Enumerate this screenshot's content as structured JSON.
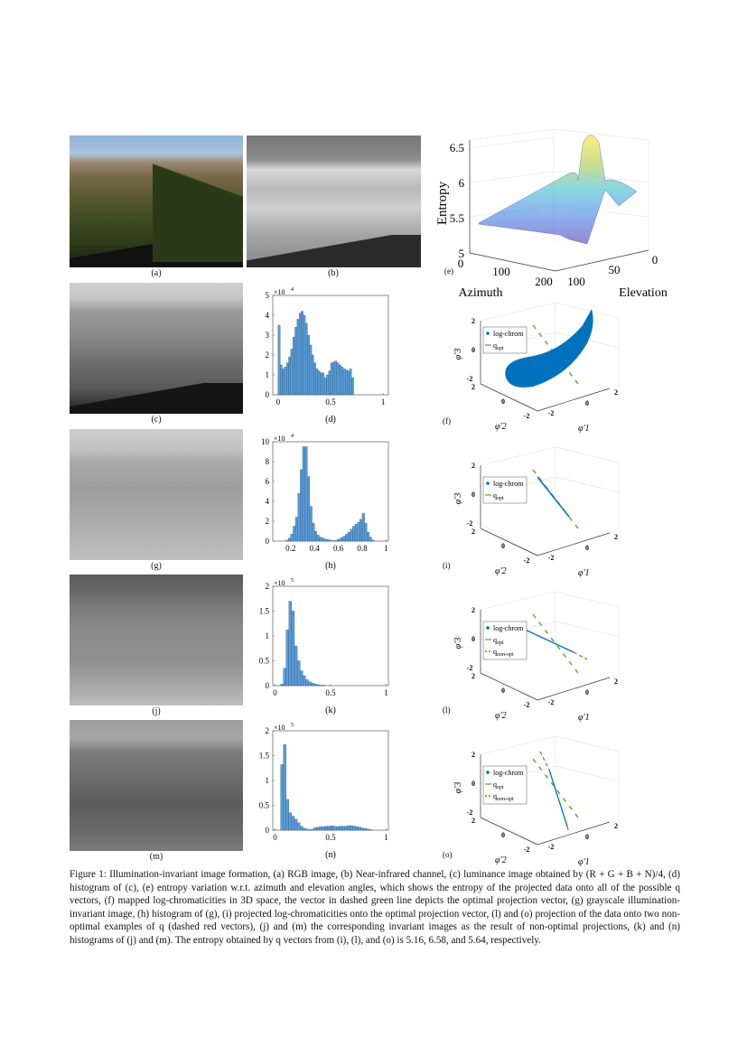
{
  "figure": {
    "panel_labels": {
      "a": "(a)",
      "b": "(b)",
      "c": "(c)",
      "d": "(d)",
      "e": "(e)",
      "f": "(f)",
      "g": "(g)",
      "h": "(h)",
      "i": "(i)",
      "j": "(j)",
      "k": "(k)",
      "l": "(l)",
      "m": "(m)",
      "n": "(n)",
      "o": "(o)"
    },
    "caption": "Figure 1: Illumination-invariant image formation, (a) RGB image, (b) Near-infrared channel, (c) luminance image obtained by (R + G + B + N)/4, (d) histogram of (c), (e) entropy variation w.r.t. azimuth and elevation angles, which shows the entropy of the projected data onto all of the possible q vectors, (f) mapped log-chromaticities in 3D space, the vector in dashed green line depicts the optimal projection vector, (g) grayscale illumination-invariant image, (h) histogram of (g), (i) projected log-chromaticities onto the optimal projection vector, (l) and (o) projection of the data onto two non-optimal examples of q (dashed red vectors), (j) and (m) the corresponding invariant images as the result of non-optimal projections, (k) and (n) histograms of (j) and (m). The entropy obtained by q vectors from (i), (l), and (o) is 5.16, 6.58, and 5.64, respectively."
  },
  "colors": {
    "bar": "#5b9bd5",
    "bar_edge": "#1f4e79",
    "log_chrom": "#0072bd",
    "q_opt": "#77ac30",
    "q_non_opt": "#d95319"
  },
  "chart_data": [
    {
      "id": "d",
      "type": "bar",
      "xlim": [
        -0.05,
        1.05
      ],
      "ylim": [
        0,
        5
      ],
      "multiplier": "×10",
      "exponent": "4",
      "xticks": [
        "0",
        "0.5",
        "1"
      ],
      "yticks": [
        "0",
        "1",
        "2",
        "3",
        "4",
        "5"
      ],
      "bin_width": 0.02,
      "x": [
        0,
        0.02,
        0.04,
        0.06,
        0.08,
        0.1,
        0.12,
        0.14,
        0.16,
        0.18,
        0.2,
        0.22,
        0.24,
        0.26,
        0.28,
        0.3,
        0.32,
        0.34,
        0.36,
        0.38,
        0.4,
        0.42,
        0.44,
        0.46,
        0.48,
        0.5,
        0.52,
        0.54,
        0.56,
        0.58,
        0.6,
        0.62,
        0.64,
        0.66,
        0.68,
        0.7
      ],
      "values": [
        3.5,
        1.5,
        1.3,
        1.4,
        1.6,
        1.9,
        2.3,
        2.9,
        3.4,
        3.8,
        4.1,
        4.2,
        4.0,
        3.6,
        3.0,
        2.5,
        2.0,
        1.6,
        1.3,
        1.2,
        1.1,
        1.1,
        0.85,
        1.0,
        1.2,
        1.6,
        1.65,
        1.7,
        1.6,
        1.5,
        1.4,
        1.3,
        1.25,
        1.2,
        1.3,
        0.85
      ]
    },
    {
      "id": "h",
      "type": "bar",
      "xlim": [
        0.05,
        1.02
      ],
      "ylim": [
        0,
        10
      ],
      "multiplier": "×10",
      "exponent": "4",
      "xticks": [
        "0.2",
        "0.4",
        "0.6",
        "0.8",
        "1"
      ],
      "yticks": [
        "0",
        "2",
        "4",
        "6",
        "8",
        "10"
      ],
      "bin_width": 0.02,
      "x": [
        0.16,
        0.18,
        0.2,
        0.22,
        0.24,
        0.26,
        0.28,
        0.3,
        0.32,
        0.34,
        0.36,
        0.38,
        0.4,
        0.42,
        0.44,
        0.46,
        0.48,
        0.5,
        0.52,
        0.54,
        0.56,
        0.58,
        0.6,
        0.62,
        0.64,
        0.66,
        0.68,
        0.7,
        0.72,
        0.74,
        0.76,
        0.78,
        0.8,
        0.82,
        0.84,
        0.86,
        0.88
      ],
      "values": [
        0.1,
        0.3,
        0.7,
        1.5,
        2.4,
        4.8,
        7.2,
        9.5,
        9.5,
        6.5,
        3.5,
        1.8,
        1.0,
        0.6,
        0.4,
        0.3,
        0.2,
        0.15,
        0.1,
        0.05,
        0.05,
        0.1,
        0.2,
        0.35,
        0.5,
        0.7,
        0.9,
        1.2,
        1.5,
        1.7,
        1.9,
        2.2,
        2.8,
        1.8,
        0.9,
        0.4,
        0.1
      ]
    },
    {
      "id": "k",
      "type": "bar",
      "xlim": [
        -0.02,
        1.02
      ],
      "ylim": [
        0,
        2
      ],
      "multiplier": "×10",
      "exponent": "5",
      "xticks": [
        "0",
        "0.5",
        "1"
      ],
      "yticks": [
        "0",
        "0.5",
        "1",
        "1.5",
        "2"
      ],
      "bin_width": 0.025,
      "x": [
        0.05,
        0.075,
        0.1,
        0.125,
        0.15,
        0.175,
        0.2,
        0.225,
        0.25,
        0.275,
        0.3,
        0.325,
        0.35,
        0.375,
        0.4,
        0.425
      ],
      "values": [
        0.03,
        0.35,
        1.12,
        1.7,
        1.5,
        0.8,
        0.5,
        0.3,
        0.2,
        0.12,
        0.08,
        0.05,
        0.03,
        0.02,
        0.01,
        0.01
      ]
    },
    {
      "id": "n",
      "type": "bar",
      "xlim": [
        -0.02,
        1.02
      ],
      "ylim": [
        0,
        2
      ],
      "multiplier": "×10",
      "exponent": "5",
      "xticks": [
        "0",
        "0.5",
        "1"
      ],
      "yticks": [
        "0",
        "0.5",
        "1",
        "1.5",
        "2"
      ],
      "bin_width": 0.025,
      "x": [
        0.05,
        0.075,
        0.1,
        0.125,
        0.15,
        0.175,
        0.2,
        0.225,
        0.25,
        0.275,
        0.3,
        0.325,
        0.35,
        0.375,
        0.4,
        0.425,
        0.45,
        0.475,
        0.5,
        0.525,
        0.55,
        0.575,
        0.6,
        0.625,
        0.65,
        0.675,
        0.7,
        0.725,
        0.75,
        0.775,
        0.8,
        0.825,
        0.85
      ],
      "values": [
        1.32,
        1.72,
        0.62,
        0.35,
        0.28,
        0.22,
        0.15,
        0.08,
        0.04,
        0.02,
        0.01,
        0.02,
        0.05,
        0.06,
        0.07,
        0.07,
        0.08,
        0.08,
        0.09,
        0.08,
        0.07,
        0.08,
        0.08,
        0.08,
        0.09,
        0.09,
        0.08,
        0.07,
        0.06,
        0.04,
        0.03,
        0.02,
        0.01
      ]
    },
    {
      "id": "e",
      "type": "surface",
      "zlabel": "Entropy",
      "xlabel": "Azimuth",
      "ylabel": "Elevation",
      "zticks": [
        "5",
        "5.5",
        "6",
        "6.5"
      ],
      "xticks": [
        "0",
        "100",
        "200"
      ],
      "yticks": [
        "100",
        "50",
        "0"
      ],
      "zlim": [
        5,
        6.7
      ],
      "colormap": "parula"
    },
    {
      "id": "f",
      "type": "scatter3d",
      "legend": [
        "log-chrom",
        "q_opt"
      ],
      "ticks": [
        "2",
        "0",
        "-2"
      ],
      "axis_labels": [
        "φ'1",
        "φ'2",
        "φ'3"
      ]
    },
    {
      "id": "i",
      "type": "scatter3d",
      "legend": [
        "log-chrom",
        "q_opt"
      ],
      "ticks": [
        "2",
        "0",
        "-2"
      ],
      "axis_labels": [
        "φ'1",
        "φ'2",
        "φ'3"
      ]
    },
    {
      "id": "l",
      "type": "scatter3d",
      "legend": [
        "log-chrom",
        "q_opt",
        "q_non-opt"
      ],
      "ticks": [
        "2",
        "0",
        "-2"
      ],
      "axis_labels": [
        "φ'1",
        "φ'2",
        "φ'3"
      ]
    },
    {
      "id": "o",
      "type": "scatter3d",
      "legend": [
        "log-chrom",
        "q_opt",
        "q_non-opt"
      ],
      "ticks": [
        "2",
        "0",
        "-2"
      ],
      "axis_labels": [
        "φ'1",
        "φ'2",
        "φ'3"
      ]
    }
  ]
}
